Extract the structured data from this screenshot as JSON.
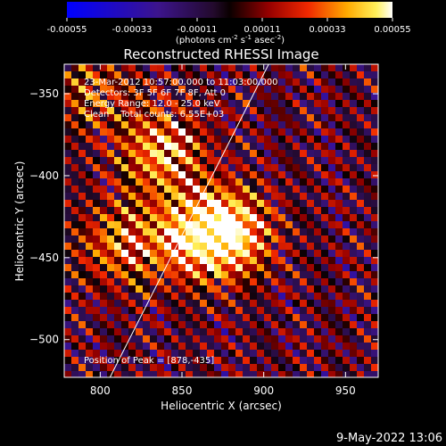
{
  "chart_data": {
    "type": "heatmap",
    "title": "Reconstructed RHESSI Image",
    "xlabel": "Heliocentric X (arcsec)",
    "ylabel": "Heliocentric Y (arcsec)",
    "xlim": [
      778,
      970
    ],
    "ylim": [
      -523,
      -332
    ],
    "xticks": [
      800,
      850,
      900,
      950
    ],
    "yticks": [
      -350,
      -400,
      -450,
      -500
    ],
    "colorbar": {
      "ticks": [
        -0.00055,
        -0.00033,
        -0.00011,
        0.00011,
        0.00033,
        0.00055
      ],
      "tick_labels": [
        "-0.00055",
        "-0.00033",
        "-0.00011",
        "0.00011",
        "0.00033",
        "0.00055"
      ],
      "unit_label": "(photons cm^-2 s^-1 asec^-2)",
      "range": [
        -0.00055,
        0.00055
      ]
    },
    "annotations": [
      "23-Mar-2012 10:57:00.000 to 11:03:00.000",
      "Detectors: 3F 5F 6F 7F 8F, Att 0",
      "Energy Range: 12.0 - 25.0 keV",
      "Clean    Total counts: 6.55E+03"
    ],
    "peak_label": "Position of Peak = [878,-435]",
    "peak": {
      "x": 878,
      "y": -435
    },
    "limb_line": [
      [
        806,
        -523
      ],
      [
        903,
        -332
      ]
    ],
    "sources": [
      {
        "x": 878,
        "y": -435,
        "amplitude": 0.00055
      },
      {
        "x": 838,
        "y": -385,
        "amplitude": 0.0004
      },
      {
        "x": 855,
        "y": -437,
        "amplitude": 0.00036
      },
      {
        "x": 812,
        "y": -442,
        "amplitude": 0.0003
      },
      {
        "x": 795,
        "y": -348,
        "amplitude": 0.00022
      }
    ],
    "background_level": 0.0
  },
  "footer": {
    "timestamp": "9-May-2022 13:06"
  }
}
